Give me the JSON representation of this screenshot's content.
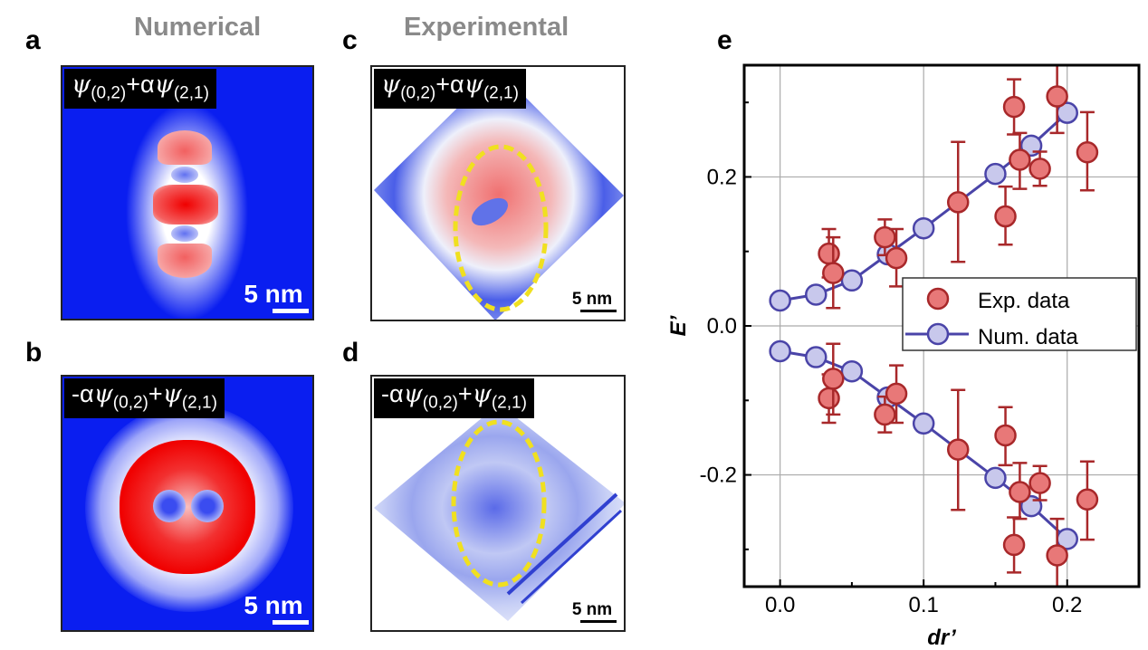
{
  "panels": {
    "a": {
      "letter": "a",
      "title": "Numerical",
      "formula_parts": [
        "ψ",
        "(0,2)",
        "+α",
        "ψ",
        "(2,1)"
      ],
      "scale": "5 nm"
    },
    "b": {
      "letter": "b",
      "formula_parts": [
        "-α",
        "ψ",
        "(0,2)",
        "+",
        "ψ",
        "(2,1)"
      ],
      "scale": "5 nm"
    },
    "c": {
      "letter": "c",
      "title": "Experimental",
      "formula_parts": [
        "ψ",
        "(0,2)",
        "+α",
        "ψ",
        "(2,1)"
      ],
      "scale": "5 nm"
    },
    "d": {
      "letter": "d",
      "formula_parts": [
        "-α",
        "ψ",
        "(0,2)",
        "+",
        "ψ",
        "(2,1)"
      ],
      "scale": "5 nm"
    },
    "e": {
      "letter": "e"
    }
  },
  "colors": {
    "map_blue": "#0a1ef0",
    "map_red": "#f01010",
    "exp_fill": "#e87878",
    "exp_edge": "#a8282a",
    "num_fill": "#c8c8ec",
    "num_edge": "#4a44a8",
    "ellipse": "#f0e020"
  },
  "chart_data": {
    "type": "scatter",
    "xlabel": "dr’",
    "ylabel": "E’",
    "xlim": [
      -0.025,
      0.25
    ],
    "ylim": [
      -0.35,
      0.35
    ],
    "xticks": [
      "0.0",
      "0.1",
      "0.2"
    ],
    "yticks": [
      "0.2",
      "0.0",
      "-0.2"
    ],
    "grid": true,
    "legend_position": "center-right",
    "series": [
      {
        "name": "Exp. data",
        "style": "markers-with-errorbars",
        "points": [
          {
            "x": 0.034,
            "y": 0.097,
            "lo": 0.065,
            "hi": 0.13
          },
          {
            "x": 0.037,
            "y": 0.071,
            "lo": 0.024,
            "hi": 0.119
          },
          {
            "x": 0.073,
            "y": 0.119,
            "lo": 0.095,
            "hi": 0.143
          },
          {
            "x": 0.081,
            "y": 0.091,
            "lo": 0.053,
            "hi": 0.13
          },
          {
            "x": 0.124,
            "y": 0.166,
            "lo": 0.086,
            "hi": 0.247
          },
          {
            "x": 0.157,
            "y": 0.147,
            "lo": 0.109,
            "hi": 0.187
          },
          {
            "x": 0.163,
            "y": 0.294,
            "lo": 0.257,
            "hi": 0.331
          },
          {
            "x": 0.167,
            "y": 0.223,
            "lo": 0.184,
            "hi": 0.259
          },
          {
            "x": 0.181,
            "y": 0.211,
            "lo": 0.188,
            "hi": 0.234
          },
          {
            "x": 0.193,
            "y": 0.308,
            "lo": 0.259,
            "hi": 0.35
          },
          {
            "x": 0.214,
            "y": 0.233,
            "lo": 0.182,
            "hi": 0.287
          },
          {
            "x": 0.034,
            "y": -0.097,
            "lo": -0.13,
            "hi": -0.065
          },
          {
            "x": 0.037,
            "y": -0.071,
            "lo": -0.119,
            "hi": -0.024
          },
          {
            "x": 0.073,
            "y": -0.119,
            "lo": -0.143,
            "hi": -0.095
          },
          {
            "x": 0.081,
            "y": -0.091,
            "lo": -0.13,
            "hi": -0.053
          },
          {
            "x": 0.124,
            "y": -0.166,
            "lo": -0.247,
            "hi": -0.086
          },
          {
            "x": 0.157,
            "y": -0.147,
            "lo": -0.187,
            "hi": -0.109
          },
          {
            "x": 0.163,
            "y": -0.294,
            "lo": -0.331,
            "hi": -0.257
          },
          {
            "x": 0.167,
            "y": -0.223,
            "lo": -0.259,
            "hi": -0.184
          },
          {
            "x": 0.181,
            "y": -0.211,
            "lo": -0.234,
            "hi": -0.188
          },
          {
            "x": 0.193,
            "y": -0.308,
            "lo": -0.35,
            "hi": -0.259
          },
          {
            "x": 0.214,
            "y": -0.233,
            "lo": -0.287,
            "hi": -0.182
          }
        ]
      },
      {
        "name": "Num. data",
        "style": "line-markers",
        "branches": [
          {
            "x": [
              0,
              0.025,
              0.05,
              0.075,
              0.1,
              0.15,
              0.175,
              0.2
            ],
            "y": [
              0.034,
              0.042,
              0.061,
              0.096,
              0.131,
              0.204,
              0.242,
              0.286
            ]
          },
          {
            "x": [
              0,
              0.025,
              0.05,
              0.075,
              0.1,
              0.15,
              0.175,
              0.2
            ],
            "y": [
              -0.034,
              -0.042,
              -0.061,
              -0.096,
              -0.131,
              -0.204,
              -0.242,
              -0.286
            ]
          }
        ]
      }
    ]
  }
}
